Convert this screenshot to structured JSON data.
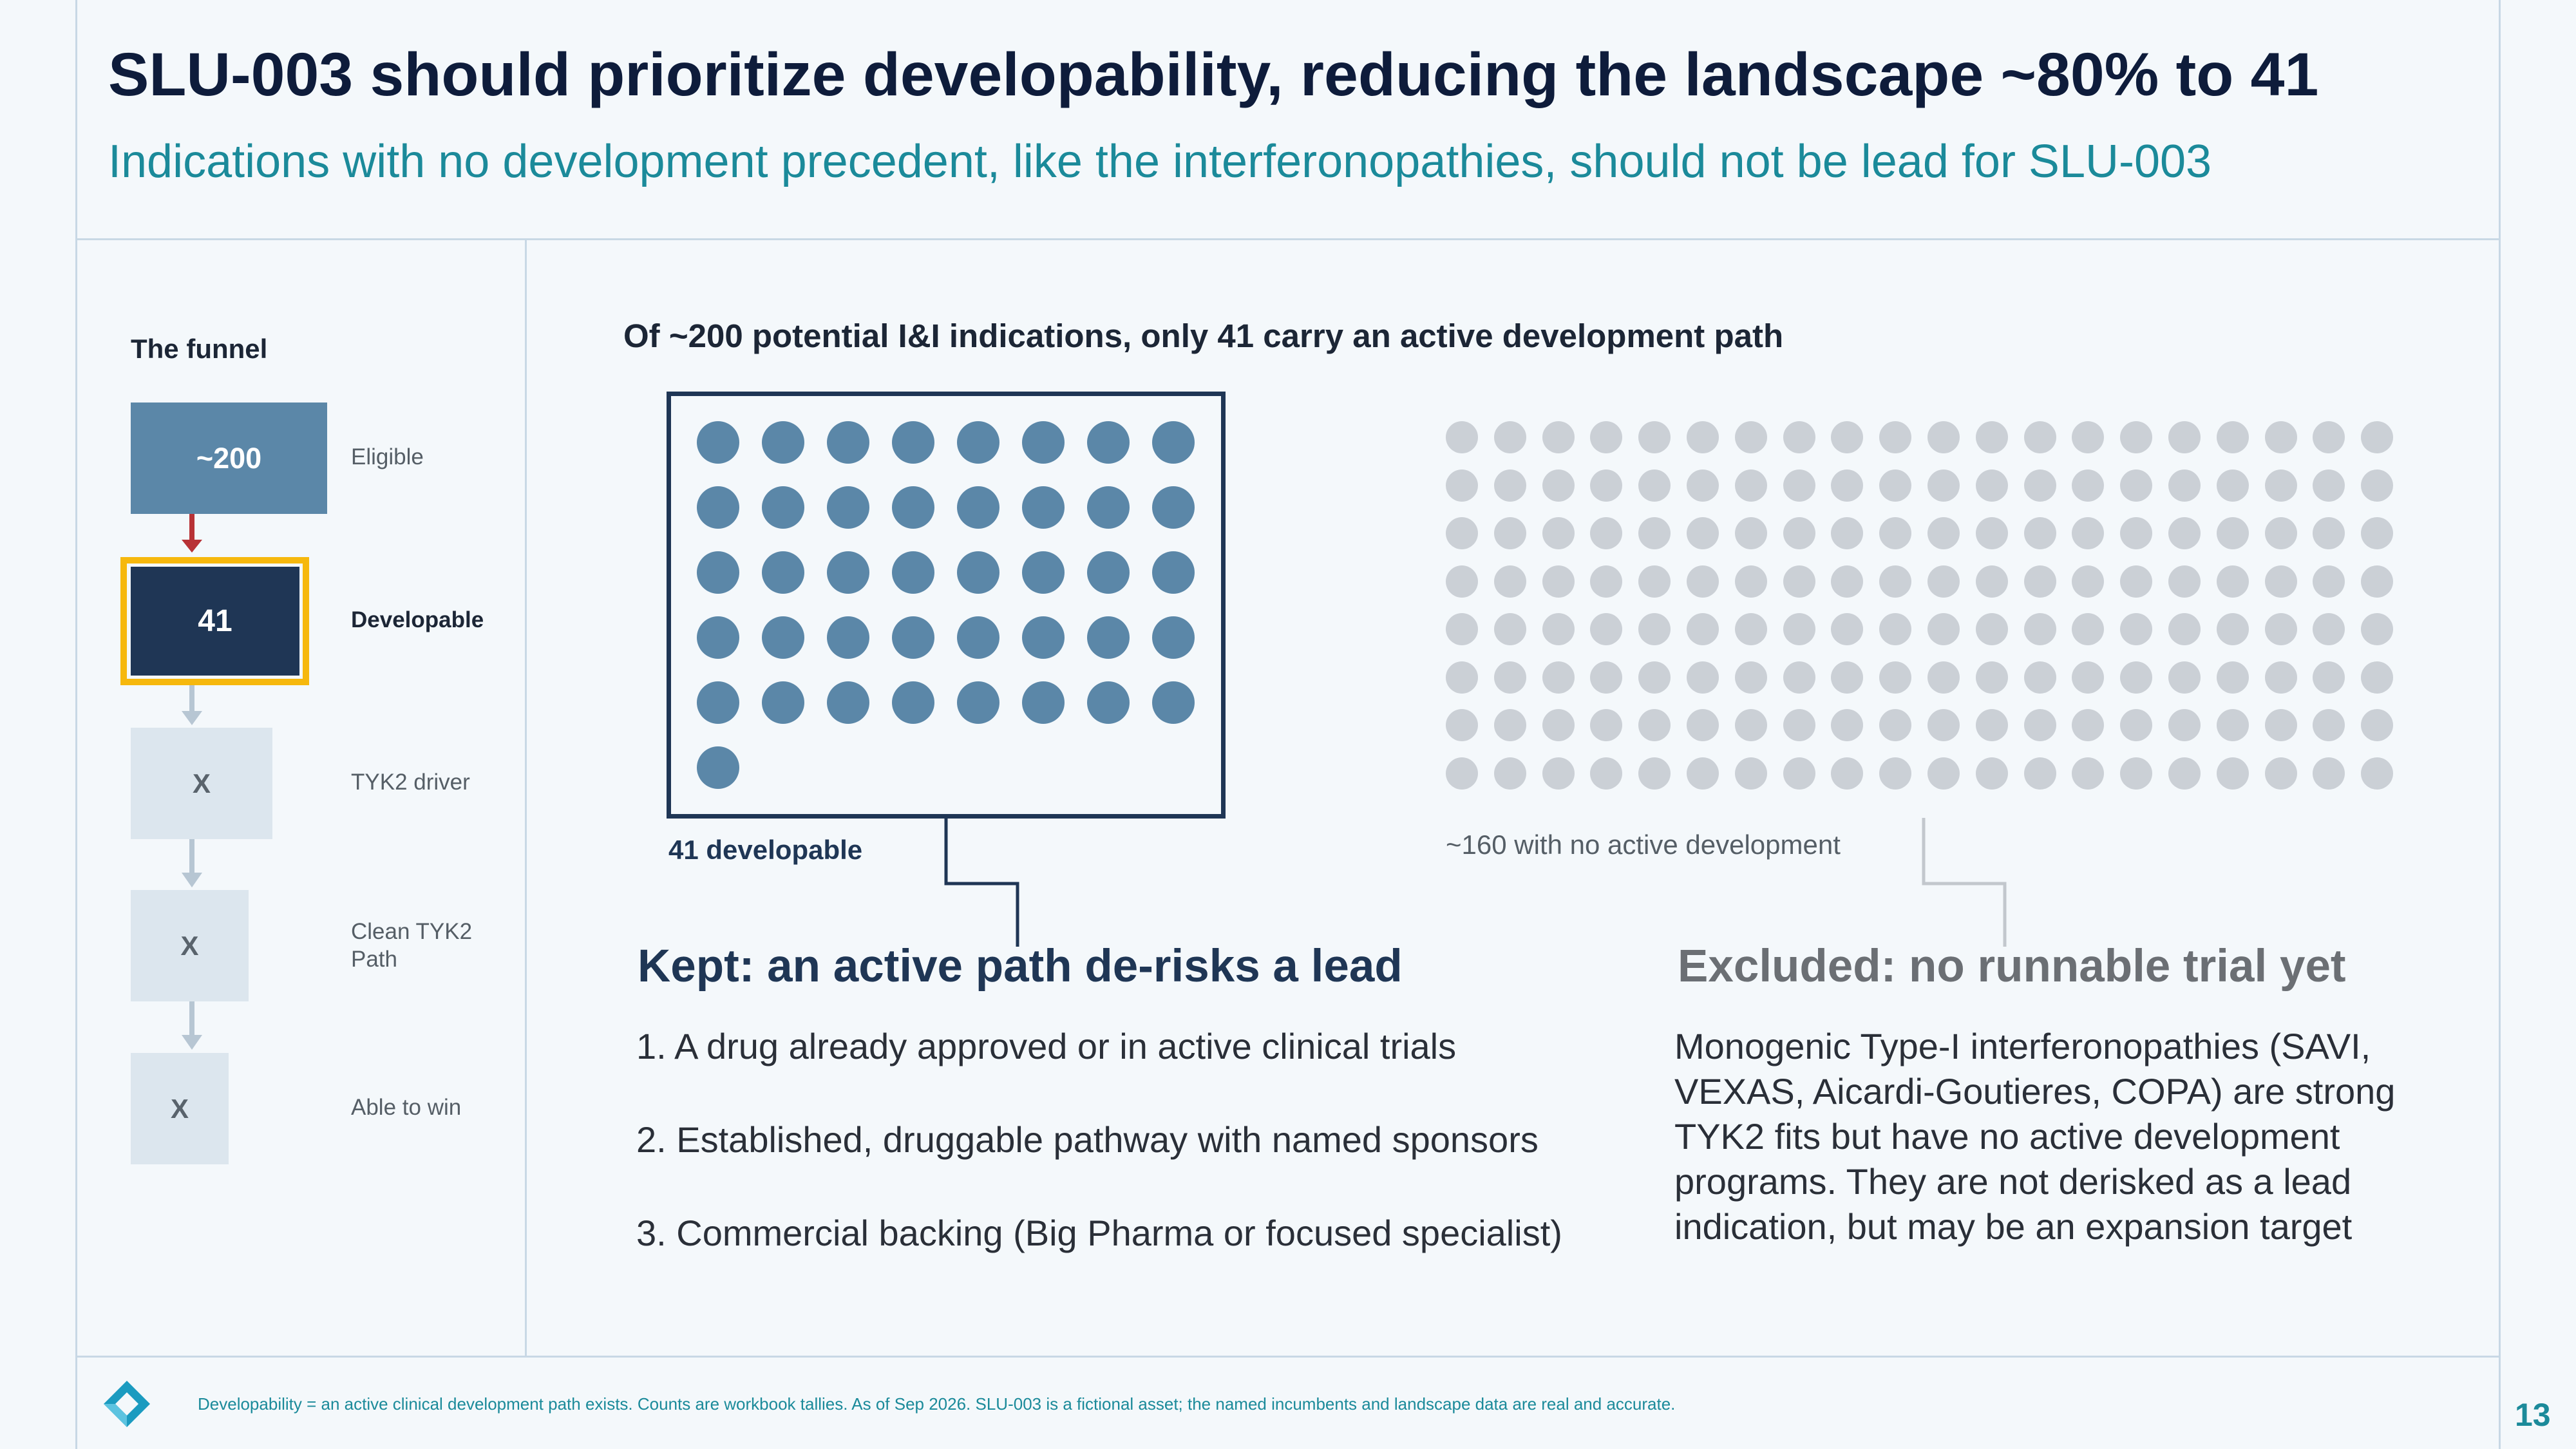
{
  "header": {
    "title": "SLU-003 should prioritize developability, reducing the landscape ~80% to 41",
    "subtitle": "Indications with no development precedent, like the interferonopathies, should not be lead for SLU-003"
  },
  "funnel": {
    "heading": "The funnel",
    "stages": [
      {
        "value": "~200",
        "label": "Eligible"
      },
      {
        "value": "41",
        "label": "Developable"
      },
      {
        "value": "X",
        "label": "TYK2 driver"
      },
      {
        "value": "X",
        "label": "Clean TYK2 Path"
      },
      {
        "value": "X",
        "label": "Able to win"
      }
    ]
  },
  "main": {
    "heading": "Of ~200 potential I&I indications, only 41 carry an active development path",
    "developable_count": 41,
    "excluded_count": 160,
    "developable_label": "41 developable",
    "excluded_label": "~160 with no active development"
  },
  "kept": {
    "heading": "Kept: an active path de-risks a lead",
    "items": [
      "1.  A drug already approved or in active clinical trials",
      "2.  Established, druggable pathway with named sponsors",
      "3.  Commercial backing (Big Pharma or focused specialist)"
    ]
  },
  "excluded": {
    "heading": "Excluded: no runnable trial yet",
    "text": "Monogenic Type-I interferonopathies (SAVI, VEXAS, Aicardi-Goutieres, COPA) are strong TYK2 fits but have no active development programs. They are not derisked as a lead indication, but may be an expansion target"
  },
  "footer": {
    "note": "Developability = an active clinical development path exists. Counts are workbook tallies. As of Sep 2026. SLU-003 is a fictional asset; the named incumbents and landscape data are real and accurate.",
    "page_number": "13",
    "logo": "diamond-logo-icon"
  },
  "colors": {
    "navy": "#1f3655",
    "steel": "#5b87a8",
    "teal": "#1b8a9a",
    "gray_dot": "#cbd0d6",
    "highlight": "#f6b80d",
    "arrow_red": "#b83236"
  }
}
